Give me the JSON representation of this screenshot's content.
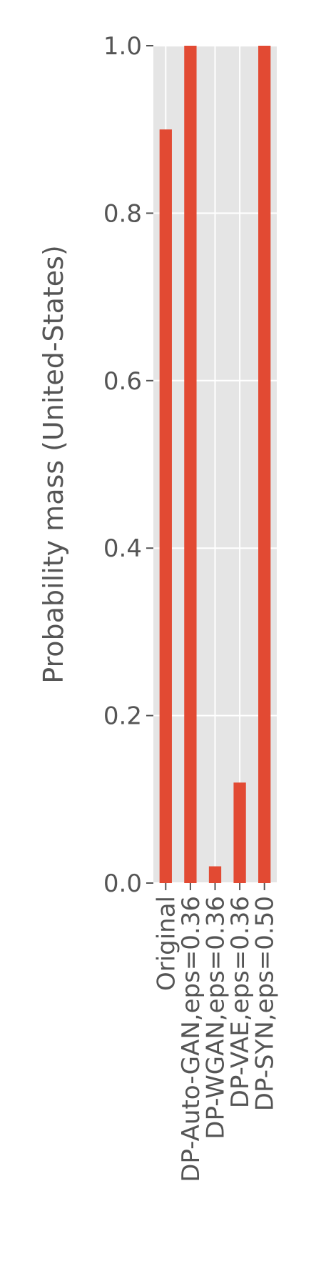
{
  "chart_data": {
    "type": "bar",
    "title": "",
    "xlabel": "",
    "ylabel": "Probability mass (United-States)",
    "categories": [
      "Original",
      "DP-Auto-GAN,eps=0.36",
      "DP-WGAN,eps=0.36",
      "DP-VAE,eps=0.36",
      "DP-SYN,eps=0.50"
    ],
    "values": [
      0.9,
      1.0,
      0.02,
      0.12,
      1.0
    ],
    "ylim": [
      0,
      1.0
    ],
    "yticks": [
      "0.0",
      "0.2",
      "0.4",
      "0.6",
      "0.8",
      "1.0"
    ],
    "grid": true,
    "legend": "none",
    "colors": {
      "bar": "#E24A33",
      "plot_bg": "#E5E5E5",
      "grid": "#FFFFFF",
      "text": "#555555"
    }
  }
}
